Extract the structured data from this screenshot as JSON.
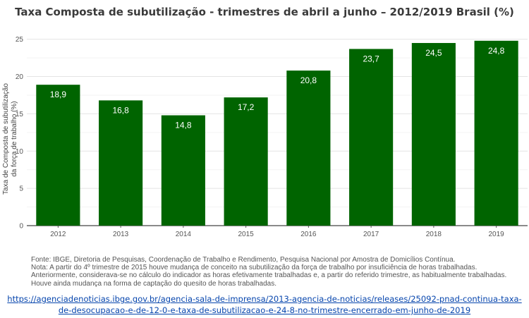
{
  "chart_data": {
    "type": "bar",
    "title": "Taxa Composta de subutilização - trimestres de abril a junho – 2012/2019 Brasil (%)",
    "ylabel_line1": "Taxa de Composta de subutilização",
    "ylabel_line2": "da força de trabalho (%)",
    "categories": [
      "2012",
      "2013",
      "2014",
      "2015",
      "2016",
      "2017",
      "2018",
      "2019"
    ],
    "values": [
      18.9,
      16.8,
      14.8,
      17.2,
      20.8,
      23.7,
      24.5,
      24.8
    ],
    "data_labels": [
      "18,9",
      "16,8",
      "14,8",
      "17,2",
      "20,8",
      "23,7",
      "24,5",
      "24,8"
    ],
    "yticks": [
      0,
      5,
      10,
      15,
      20,
      25
    ],
    "ylim": [
      0,
      26.2
    ],
    "bar_color": "#006400",
    "grid": true
  },
  "notes": {
    "line1": "Fonte: IBGE, Diretoria de Pesquisas, Coordenação de Trabalho e Rendimento, Pesquisa Nacional por Amostra de Domicílios Contínua.",
    "line2": "Nota: A partir do 4º trimestre de 2015 houve mudança de conceito na subutilização da força de trabalho por insuficiência de horas trabalhadas.",
    "line3": "Anteriormente, considerava-se no cálculo do indicador as horas efetivamente trabalhadas e, a partir do referido trimestre, as habitualmente trabalhadas.",
    "line4": "Houve ainda mudança na forma de captação do quesito de horas trabalhadas."
  },
  "link": {
    "line1": "https://agenciadenoticias.ibge.gov.br/agencia-sala-de-imprensa/2013-agencia-de-noticias/releases/25092-pnad-continua-taxa-",
    "line2": "de-desocupacao-e-de-12-0-e-taxa-de-subutilizacao-e-24-8-no-trimestre-encerrado-em-junho-de-2019"
  }
}
